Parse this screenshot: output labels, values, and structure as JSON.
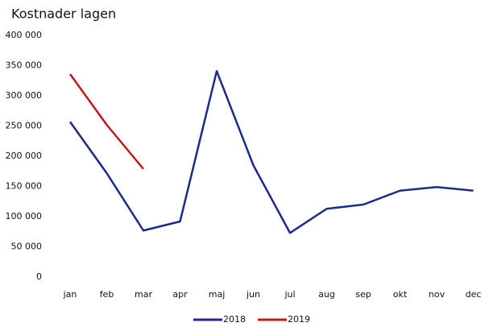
{
  "chart_data": {
    "type": "line",
    "title": "Kostnader lagen",
    "categories": [
      "jan",
      "feb",
      "mar",
      "apr",
      "maj",
      "jun",
      "jul",
      "aug",
      "sep",
      "okt",
      "nov",
      "dec"
    ],
    "series": [
      {
        "name": "2018",
        "color": "#1c2a8c",
        "values": [
          257000,
          172000,
          77000,
          92000,
          341000,
          185000,
          73000,
          113000,
          120000,
          143000,
          149000,
          143000
        ]
      },
      {
        "name": "2019",
        "color": "#c4161c",
        "values": [
          336000,
          252000,
          179000,
          null,
          null,
          null,
          null,
          null,
          null,
          null,
          null,
          null
        ]
      }
    ],
    "ylim": [
      0,
      400000
    ],
    "yticks": [
      0,
      {
        "value": 50000,
        "label": "50 000"
      },
      {
        "value": 100000,
        "label": "100 000"
      },
      {
        "value": 150000,
        "label": "150 000"
      },
      {
        "value": 200000,
        "label": "200 000"
      },
      {
        "value": 250000,
        "label": "250 000"
      },
      {
        "value": 300000,
        "label": "300 000"
      },
      {
        "value": 350000,
        "label": "350 000"
      },
      {
        "value": 400000,
        "label": "400 000"
      }
    ],
    "grid": false
  }
}
